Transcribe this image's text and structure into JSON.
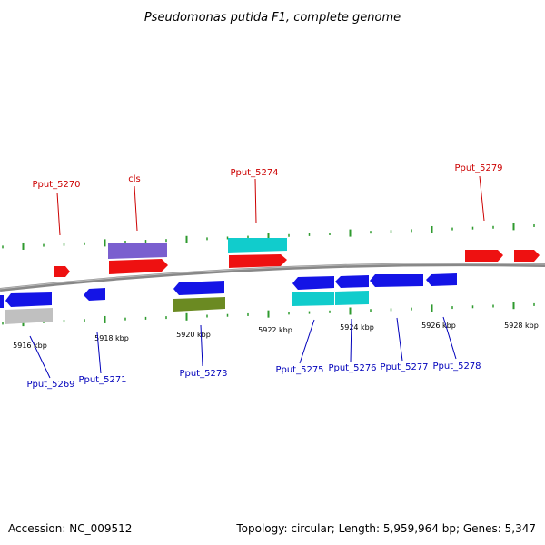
{
  "title": "Pseudomonas putida F1, complete genome",
  "footer": {
    "accession": "Accession: NC_009512",
    "info": "Topology: circular; Length: 5,959,964 bp; Genes: 5,347"
  },
  "colors": {
    "red": "#ee1111",
    "blue": "#1414e6",
    "purple": "#7a5fcf",
    "cyan": "#11cccc",
    "olive": "#6b8a22",
    "gray": "#c0c0c0",
    "backbone": "#888888",
    "tick": "#2e9a2e",
    "label_forward": "#cc0000",
    "label_reverse": "#0000bb"
  },
  "tick_labels": [
    "5916 kbp",
    "5918 kbp",
    "5920 kbp",
    "5922 kbp",
    "5924 kbp",
    "5926 kbp",
    "5928 kbp"
  ],
  "gene_labels": {
    "forward": [
      "Pput_5270",
      "cls",
      "Pput_5274",
      "Pput_5279"
    ],
    "reverse": [
      "Pput_5269",
      "Pput_5271",
      "Pput_5273",
      "Pput_5275",
      "Pput_5276",
      "Pput_5277",
      "Pput_5278"
    ]
  }
}
